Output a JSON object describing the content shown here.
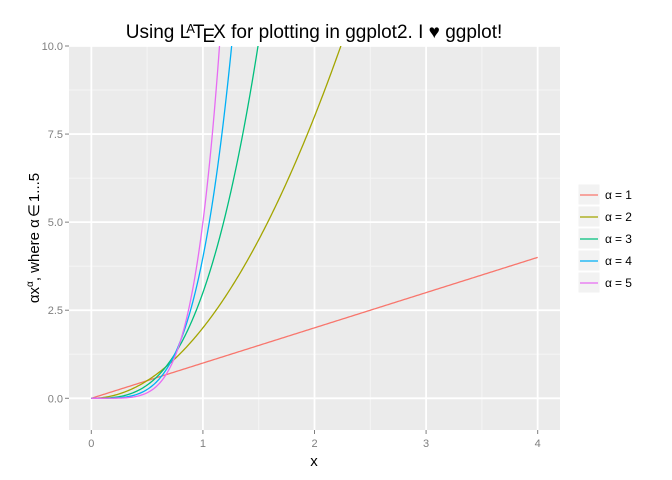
{
  "chart_data": {
    "type": "line",
    "title": {
      "prefix": "Using ",
      "latex_l": "L",
      "latex_a": "A",
      "latex_t": "T",
      "latex_e": "E",
      "latex_x": "X",
      "suffix_1": " for plotting in ggplot2. I ",
      "heart": "♥",
      "suffix_2": " ggplot!"
    },
    "xlabel": "x",
    "ylabel": {
      "alpha": "α",
      "x": "x",
      "exponent": "α",
      "rest": ", where ",
      "alpha2": "α",
      "member": "∈",
      "range": "1...5"
    },
    "xlim": [
      -0.2,
      4.2
    ],
    "ylim": [
      -0.9,
      10.0
    ],
    "x_ticks": [
      0,
      1,
      2,
      3,
      4
    ],
    "x_tick_labels": [
      "0",
      "1",
      "2",
      "3",
      "4"
    ],
    "y_ticks": [
      0,
      2.5,
      5,
      7.5,
      10
    ],
    "y_tick_labels": [
      "0.0",
      "2.5",
      "5.0",
      "7.5",
      "10.0"
    ],
    "x_range": [
      0,
      4
    ],
    "formula": "y = a * x^a",
    "grid": true,
    "legend_position": "right",
    "series": [
      {
        "a": 1,
        "label_symbol": "α",
        "label_eq": "= 1",
        "color": "#F8766D"
      },
      {
        "a": 2,
        "label_symbol": "α",
        "label_eq": "= 2",
        "color": "#A3A500"
      },
      {
        "a": 3,
        "label_symbol": "α",
        "label_eq": "= 3",
        "color": "#00BF7D"
      },
      {
        "a": 4,
        "label_symbol": "α",
        "label_eq": "= 4",
        "color": "#00B0F6"
      },
      {
        "a": 5,
        "label_symbol": "α",
        "label_eq": "= 5",
        "color": "#E76BF3"
      }
    ],
    "colors": {
      "panel_background": "#EBEBEB",
      "grid_major": "#FFFFFF",
      "grid_minor": "#F5F5F5",
      "tick_text": "#7F7F7F",
      "tick_mark": "#7F7F7F",
      "legend_key_background": "#F2F2F2"
    }
  }
}
